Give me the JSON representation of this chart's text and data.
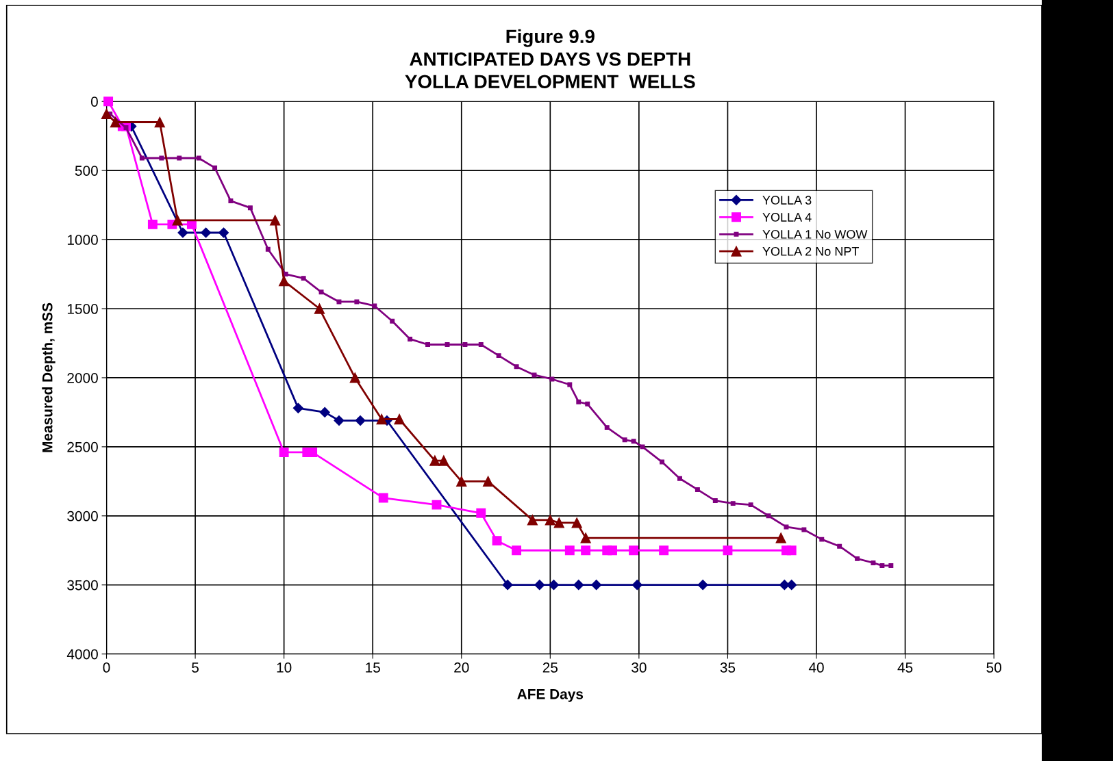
{
  "chart_data": {
    "type": "line",
    "title": "Figure 9.9\nANTICIPATED DAYS VS DEPTH\nYOLLA DEVELOPMENT  WELLS",
    "xlabel": "AFE Days",
    "ylabel": "Measured Depth, mSS",
    "xlim": [
      0,
      50
    ],
    "xticks": [
      0,
      5,
      10,
      15,
      20,
      25,
      30,
      35,
      40,
      45,
      50
    ],
    "ylim": [
      4000,
      0
    ],
    "yticks": [
      0,
      500,
      1000,
      1500,
      2000,
      2500,
      3000,
      3500,
      4000
    ],
    "grid": true,
    "legend": "top right",
    "series": [
      {
        "name": "YOLLA 3",
        "color": "#000080",
        "marker": "diamond",
        "x": [
          1.4,
          4.3,
          5.6,
          6.6,
          10.8,
          12.3,
          13.1,
          14.3,
          15.8,
          22.6,
          24.4,
          25.2,
          26.6,
          27.6,
          29.9,
          33.6,
          38.2,
          38.6
        ],
        "values": [
          180,
          950,
          950,
          950,
          2220,
          2250,
          2310,
          2310,
          2310,
          3500,
          3500,
          3500,
          3500,
          3500,
          3500,
          3500,
          3500,
          3500
        ]
      },
      {
        "name": "YOLLA 4",
        "color": "#ff00ff",
        "marker": "square",
        "x": [
          0.1,
          0.9,
          1.1,
          2.6,
          3.7,
          4.8,
          10.0,
          11.3,
          11.6,
          15.6,
          18.6,
          21.1,
          22.0,
          23.1,
          26.1,
          27.0,
          28.2,
          28.5,
          29.7,
          31.4,
          35.0,
          38.3,
          38.6
        ],
        "values": [
          0,
          180,
          180,
          890,
          890,
          890,
          2540,
          2540,
          2540,
          2870,
          2920,
          2980,
          3180,
          3250,
          3250,
          3250,
          3250,
          3250,
          3250,
          3250,
          3250,
          3250,
          3250
        ]
      },
      {
        "name": "YOLLA 1 No WOW",
        "color": "#800080",
        "marker": "square",
        "x": [
          0.2,
          1.1,
          2.0,
          3.1,
          4.1,
          5.2,
          6.1,
          7.0,
          8.1,
          9.1,
          10.1,
          11.1,
          12.1,
          13.1,
          14.1,
          15.1,
          16.1,
          17.1,
          18.1,
          19.2,
          20.2,
          21.1,
          22.1,
          23.1,
          24.1,
          25.1,
          26.1,
          26.6,
          27.1,
          28.2,
          29.2,
          29.7,
          30.2,
          31.3,
          32.3,
          33.3,
          34.3,
          35.3,
          36.3,
          37.3,
          38.3,
          39.3,
          40.3,
          41.3,
          42.3,
          43.2,
          43.7,
          44.2
        ],
        "values": [
          90,
          190,
          410,
          410,
          410,
          410,
          480,
          720,
          770,
          1070,
          1250,
          1280,
          1380,
          1450,
          1450,
          1480,
          1590,
          1720,
          1760,
          1760,
          1760,
          1760,
          1840,
          1920,
          1980,
          2010,
          2050,
          2175,
          2190,
          2360,
          2450,
          2460,
          2500,
          2610,
          2730,
          2810,
          2890,
          2910,
          2920,
          3000,
          3080,
          3100,
          3170,
          3220,
          3310,
          3340,
          3360,
          3360
        ]
      },
      {
        "name": "YOLLA 2 No NPT",
        "color": "#800000",
        "marker": "triangle",
        "x": [
          0,
          0.5,
          3.0,
          4.0,
          9.5,
          10.0,
          12.0,
          14.0,
          15.5,
          16.5,
          18.5,
          19.0,
          20.0,
          21.5,
          24.0,
          25.0,
          25.5,
          26.5,
          27.0,
          38.0
        ],
        "values": [
          90,
          150,
          150,
          860,
          860,
          1300,
          1500,
          2000,
          2300,
          2300,
          2600,
          2600,
          2750,
          2750,
          3030,
          3030,
          3050,
          3050,
          3160,
          3160
        ]
      }
    ]
  }
}
